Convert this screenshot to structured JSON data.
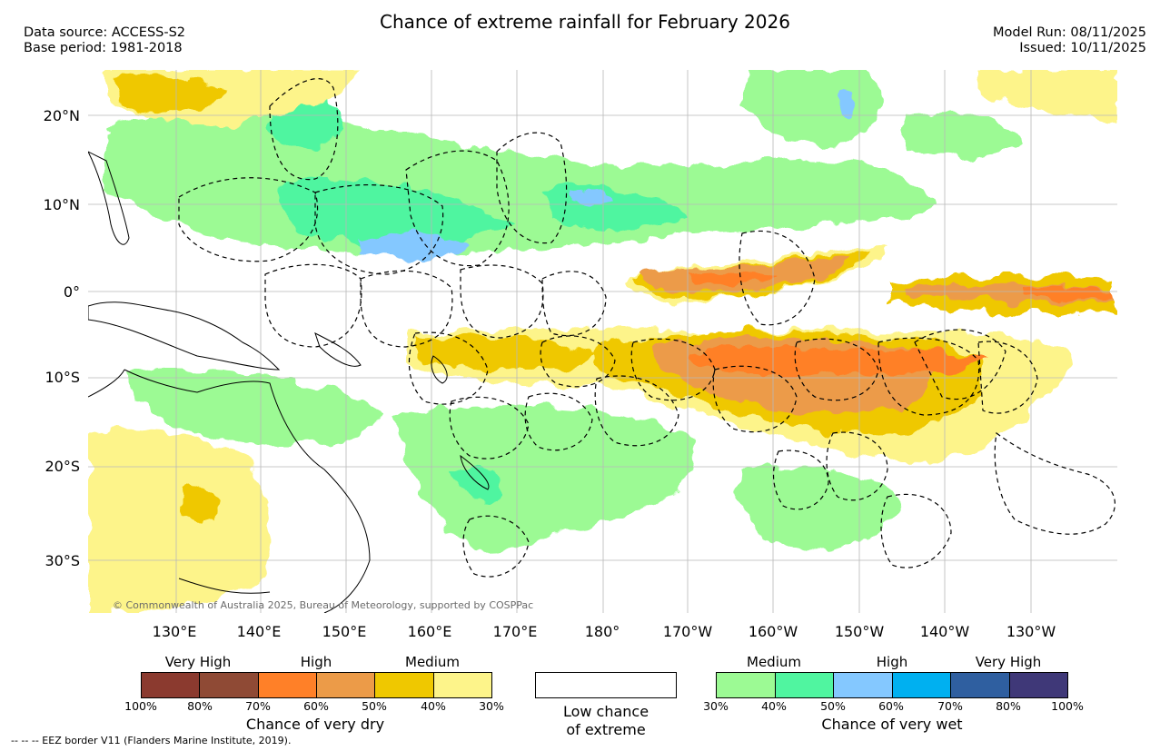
{
  "header": {
    "title": "Chance of extreme rainfall for February 2026",
    "data_source": "Data source: ACCESS-S2",
    "base_period": "Base period: 1981-2018",
    "model_run": "Model Run: 08/11/2025",
    "issued": "Issued: 10/11/2025"
  },
  "map": {
    "lat_labels": [
      "20°N",
      "10°N",
      "0°",
      "10°S",
      "20°S",
      "30°S"
    ],
    "lon_labels": [
      "130°E",
      "140°E",
      "150°E",
      "160°E",
      "170°E",
      "180°",
      "170°W",
      "160°W",
      "150°W",
      "140°W",
      "130°W"
    ],
    "copyright": "© Commonwealth of Australia 2025, Bureau of Meteorology, supported by COSPPac",
    "colors": {
      "dry_30": "#fdf48a",
      "dry_40": "#efc800",
      "dry_50": "#ec9b48",
      "dry_60": "#ff8028",
      "wet_30": "#9cfa94",
      "wet_40": "#50f5a0",
      "wet_50": "#84c8ff",
      "land_outline": "#000000"
    }
  },
  "legend": {
    "dry": {
      "categories": [
        "Very High",
        "High",
        "Medium"
      ],
      "tick_labels": [
        "100%",
        "80%",
        "70%",
        "60%",
        "50%",
        "40%",
        "30%"
      ],
      "colors": [
        "#8b3a2f",
        "#8f4a35",
        "#ff8028",
        "#ec9b48",
        "#efc800",
        "#fdf48a"
      ],
      "title": "Chance of very dry"
    },
    "low": {
      "line1": "Low chance",
      "line2": "of extreme"
    },
    "wet": {
      "categories": [
        "Medium",
        "High",
        "Very High"
      ],
      "tick_labels": [
        "30%",
        "40%",
        "50%",
        "60%",
        "70%",
        "80%",
        "100%"
      ],
      "colors": [
        "#9cfa94",
        "#50f5a0",
        "#84c8ff",
        "#00b0f0",
        "#2f5fa0",
        "#3f3878"
      ],
      "title": "Chance of very wet"
    }
  },
  "footnote": "--  --  -- EEZ border V11 (Flanders Marine Institute, 2019)."
}
